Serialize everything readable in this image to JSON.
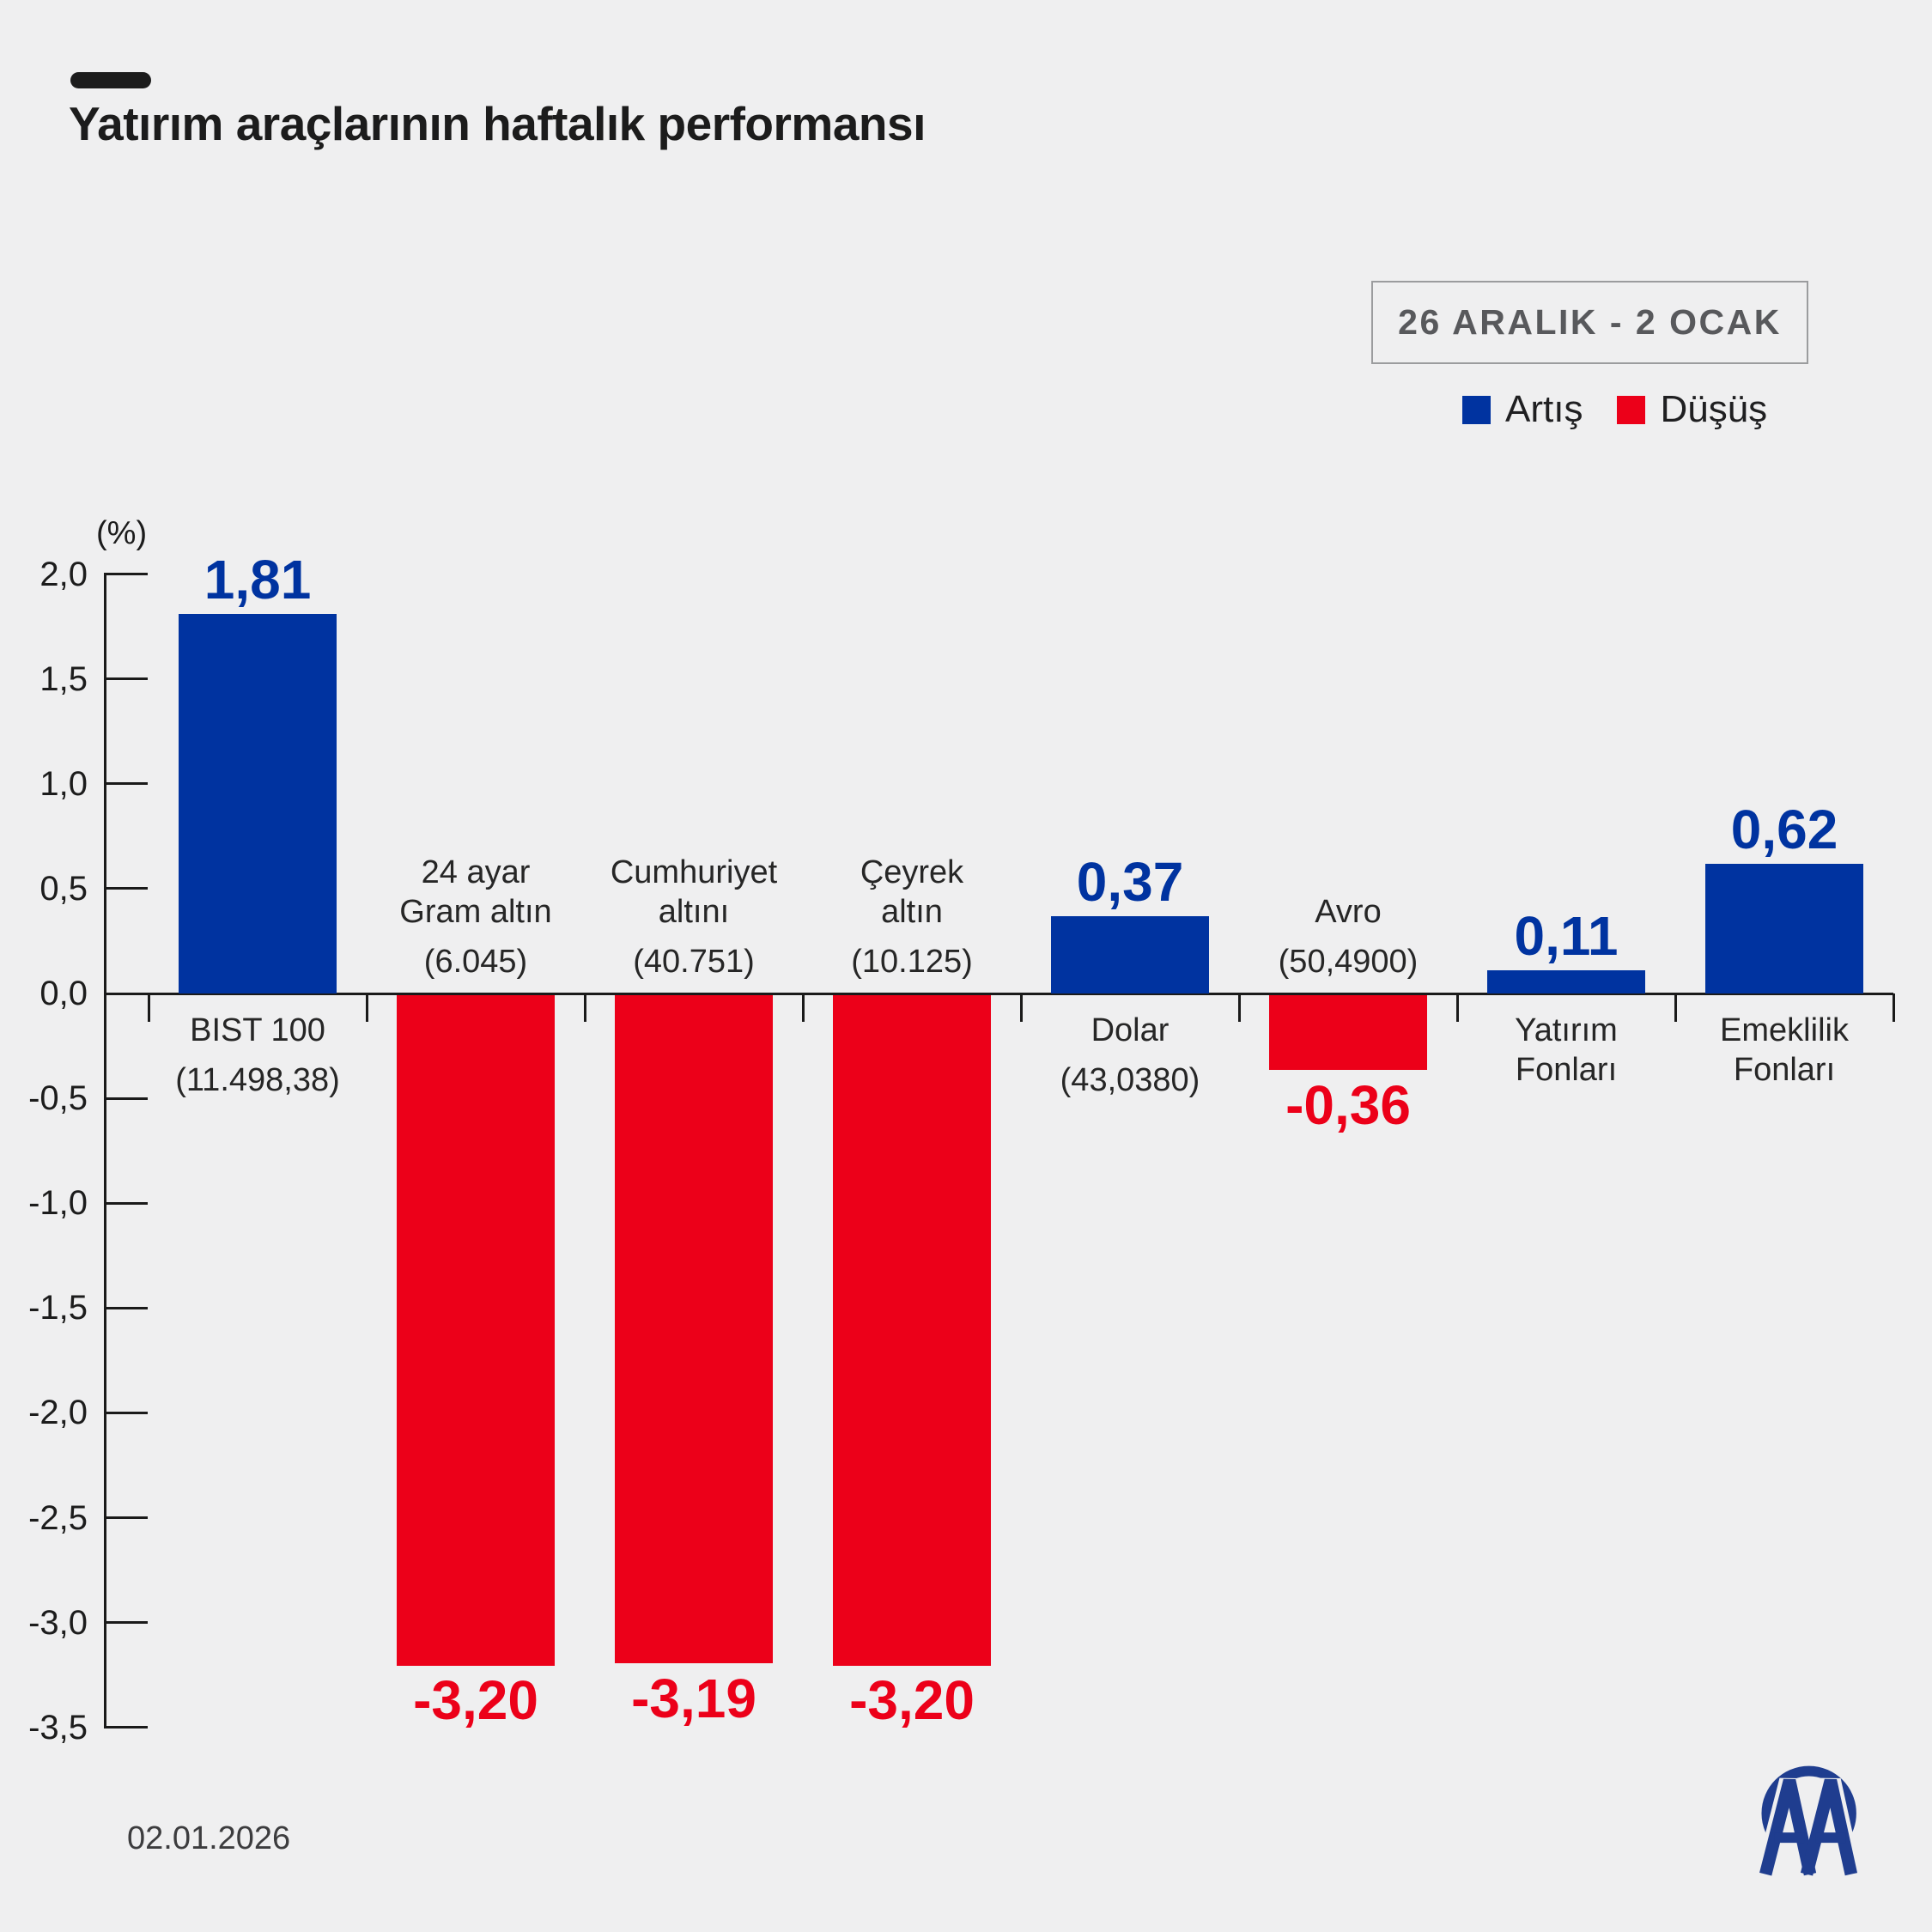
{
  "header": {
    "title": "Yatırım araçlarının haftalık performansı",
    "period_badge": "26 ARALIK - 2 OCAK"
  },
  "legend": {
    "increase": "Artış",
    "decrease": "Düşüş"
  },
  "colors": {
    "background": "#efeff0",
    "increase": "#0033a0",
    "decrease": "#ec0019",
    "axis": "#1a1a1a",
    "logo": "#1f3d8f"
  },
  "chart_data": {
    "type": "bar",
    "unit_label": "(%)",
    "ylim": [
      -3.5,
      2.0
    ],
    "ytick_step": 0.5,
    "ytick_labels": [
      "2,0",
      "1,5",
      "1,0",
      "0,5",
      "0,0",
      "-0,5",
      "-1,0",
      "-1,5",
      "-2,0",
      "-2,5",
      "-3,0",
      "-3,5"
    ],
    "grid": false,
    "legend_position": "top-right",
    "bars": [
      {
        "name_lines": [
          "BIST 100"
        ],
        "paren": "(11.498,38)",
        "value": 1.81,
        "value_label": "1,81"
      },
      {
        "name_lines": [
          "24 ayar",
          "Gram altın"
        ],
        "paren": "(6.045)",
        "value": -3.2,
        "value_label": "-3,20"
      },
      {
        "name_lines": [
          "Cumhuriyet",
          "altını"
        ],
        "paren": "(40.751)",
        "value": -3.19,
        "value_label": "-3,19"
      },
      {
        "name_lines": [
          "Çeyrek",
          "altın"
        ],
        "paren": "(10.125)",
        "value": -3.2,
        "value_label": "-3,20"
      },
      {
        "name_lines": [
          "Dolar"
        ],
        "paren": "(43,0380)",
        "value": 0.37,
        "value_label": "0,37"
      },
      {
        "name_lines": [
          "Avro"
        ],
        "paren": "(50,4900)",
        "value": -0.36,
        "value_label": "-0,36"
      },
      {
        "name_lines": [
          "Yatırım",
          "Fonları"
        ],
        "paren": "",
        "value": 0.11,
        "value_label": "0,11"
      },
      {
        "name_lines": [
          "Emeklilik",
          "Fonları"
        ],
        "paren": "",
        "value": 0.62,
        "value_label": "0,62"
      }
    ]
  },
  "footer": {
    "date": "02.01.2026",
    "logo": "AA"
  }
}
